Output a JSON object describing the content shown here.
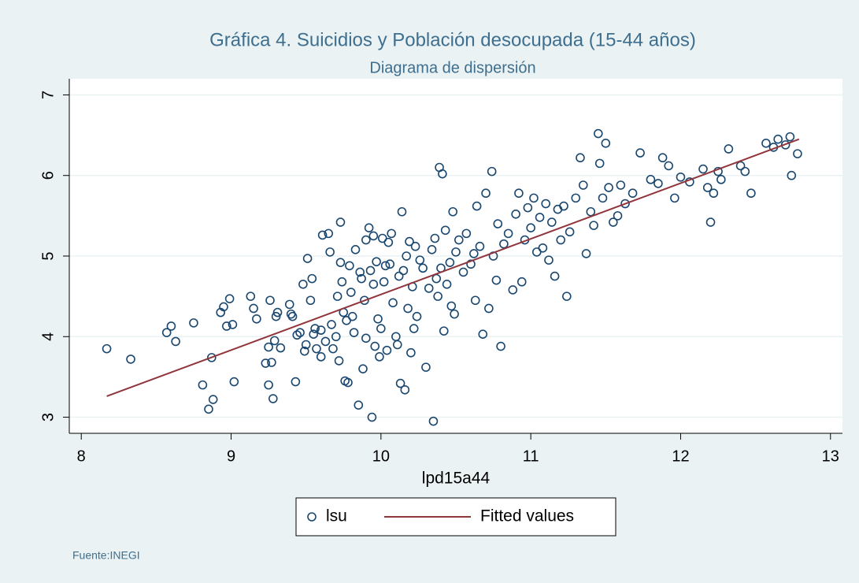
{
  "chart_data": {
    "type": "scatter",
    "title": "Gráfica 4. Suicidios y Población desocupada (15-44 años)",
    "subtitle": "Diagrama de dispersión",
    "x_label": "lpd15a44",
    "annotation": "Fuente:INEGI",
    "xlim": [
      7.92,
      13.08
    ],
    "ylim": [
      2.8,
      7.2
    ],
    "xticks": [
      8,
      9,
      10,
      11,
      12,
      13
    ],
    "yticks": [
      3,
      4,
      5,
      6,
      7
    ],
    "grid": true,
    "legend": "bottom",
    "series": [
      {
        "name": "lsu",
        "type": "scatter",
        "color": "#1a476f",
        "x": [
          8.17,
          8.33,
          8.57,
          8.6,
          8.63,
          8.75,
          8.81,
          8.85,
          8.87,
          8.88,
          8.93,
          8.95,
          8.97,
          8.99,
          9.01,
          9.02,
          9.13,
          9.15,
          9.17,
          9.23,
          9.25,
          9.25,
          9.26,
          9.27,
          9.28,
          9.29,
          9.3,
          9.31,
          9.33,
          9.39,
          9.4,
          9.41,
          9.43,
          9.44,
          9.46,
          9.48,
          9.49,
          9.5,
          9.51,
          9.53,
          9.54,
          9.55,
          9.56,
          9.57,
          9.6,
          9.6,
          9.61,
          9.63,
          9.65,
          9.66,
          9.67,
          9.68,
          9.7,
          9.71,
          9.72,
          9.73,
          9.73,
          9.74,
          9.75,
          9.76,
          9.77,
          9.78,
          9.79,
          9.8,
          9.81,
          9.82,
          9.83,
          9.85,
          9.86,
          9.87,
          9.88,
          9.89,
          9.9,
          9.9,
          9.92,
          9.93,
          9.94,
          9.95,
          9.95,
          9.96,
          9.97,
          9.98,
          9.99,
          10.0,
          10.01,
          10.02,
          10.03,
          10.04,
          10.05,
          10.06,
          10.07,
          10.08,
          10.1,
          10.11,
          10.12,
          10.13,
          10.14,
          10.15,
          10.16,
          10.17,
          10.18,
          10.19,
          10.2,
          10.21,
          10.22,
          10.23,
          10.24,
          10.26,
          10.28,
          10.3,
          10.32,
          10.34,
          10.35,
          10.36,
          10.37,
          10.38,
          10.39,
          10.4,
          10.41,
          10.42,
          10.43,
          10.44,
          10.46,
          10.47,
          10.48,
          10.49,
          10.5,
          10.52,
          10.55,
          10.57,
          10.6,
          10.62,
          10.63,
          10.64,
          10.66,
          10.68,
          10.7,
          10.72,
          10.74,
          10.75,
          10.77,
          10.78,
          10.8,
          10.82,
          10.85,
          10.88,
          10.9,
          10.92,
          10.94,
          10.96,
          10.98,
          11.0,
          11.02,
          11.04,
          11.06,
          11.08,
          11.1,
          11.12,
          11.14,
          11.16,
          11.18,
          11.2,
          11.22,
          11.24,
          11.26,
          11.3,
          11.33,
          11.35,
          11.37,
          11.4,
          11.42,
          11.45,
          11.46,
          11.48,
          11.5,
          11.52,
          11.55,
          11.58,
          11.6,
          11.63,
          11.68,
          11.73,
          11.8,
          11.85,
          11.88,
          11.92,
          11.96,
          12.0,
          12.06,
          12.15,
          12.18,
          12.2,
          12.22,
          12.25,
          12.27,
          12.32,
          12.4,
          12.43,
          12.47,
          12.57,
          12.62,
          12.65,
          12.7,
          12.73,
          12.74,
          12.78
        ],
        "values": [
          3.85,
          3.72,
          4.05,
          4.13,
          3.94,
          4.17,
          3.4,
          3.1,
          3.74,
          3.22,
          4.3,
          4.37,
          4.13,
          4.47,
          4.15,
          3.44,
          4.5,
          4.35,
          4.22,
          3.67,
          3.4,
          3.87,
          4.45,
          3.68,
          3.23,
          3.95,
          4.25,
          4.3,
          3.86,
          4.4,
          4.28,
          4.25,
          3.44,
          4.02,
          4.05,
          4.65,
          3.82,
          3.9,
          4.97,
          4.45,
          4.72,
          4.03,
          4.1,
          3.85,
          3.75,
          4.08,
          5.26,
          3.94,
          5.28,
          5.05,
          4.15,
          3.85,
          4.0,
          4.5,
          3.7,
          4.92,
          5.42,
          4.68,
          4.3,
          3.45,
          4.2,
          3.43,
          4.88,
          4.55,
          4.25,
          4.05,
          5.08,
          3.15,
          4.8,
          4.72,
          3.6,
          4.45,
          5.2,
          3.98,
          5.35,
          4.82,
          3.0,
          4.65,
          5.25,
          3.88,
          4.93,
          4.22,
          3.75,
          4.1,
          5.22,
          4.68,
          4.88,
          3.83,
          5.17,
          4.9,
          5.28,
          4.42,
          4.0,
          3.9,
          4.75,
          3.42,
          5.55,
          4.82,
          3.34,
          5.0,
          4.35,
          5.18,
          3.8,
          4.62,
          4.1,
          5.12,
          4.25,
          4.95,
          4.85,
          3.62,
          4.6,
          5.08,
          2.95,
          5.22,
          4.72,
          4.5,
          6.1,
          4.85,
          6.02,
          4.07,
          5.32,
          4.65,
          4.92,
          4.38,
          5.55,
          4.28,
          5.05,
          5.2,
          4.8,
          5.28,
          4.9,
          5.03,
          4.45,
          5.62,
          5.12,
          4.03,
          5.78,
          4.35,
          6.05,
          5.0,
          4.7,
          5.4,
          3.88,
          5.15,
          5.28,
          4.58,
          5.52,
          5.78,
          4.68,
          5.2,
          5.6,
          5.35,
          5.72,
          5.05,
          5.48,
          5.1,
          5.65,
          4.95,
          5.42,
          4.75,
          5.58,
          5.2,
          5.62,
          4.5,
          5.3,
          5.72,
          6.22,
          5.88,
          5.03,
          5.55,
          5.38,
          6.52,
          6.15,
          5.72,
          6.4,
          5.85,
          5.42,
          5.5,
          5.88,
          5.65,
          5.78,
          6.28,
          5.95,
          5.9,
          6.22,
          6.12,
          5.72,
          5.98,
          5.92,
          6.08,
          5.85,
          5.42,
          5.78,
          6.05,
          5.95,
          6.33,
          6.12,
          6.05,
          5.78,
          6.4,
          6.35,
          6.45,
          6.38,
          6.48,
          6.0,
          6.27
        ]
      },
      {
        "name": "Fitted values",
        "type": "line",
        "color": "#90353b",
        "x": [
          8.17,
          12.79
        ],
        "values": [
          3.26,
          6.45
        ]
      }
    ]
  }
}
